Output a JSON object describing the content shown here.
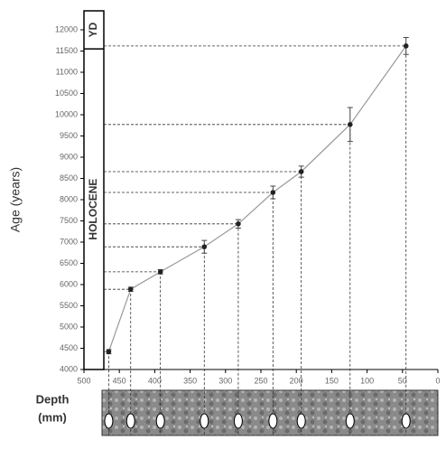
{
  "chart_data": {
    "type": "scatter",
    "ylabel": "Age (years)",
    "xlabel": [
      "Depth",
      "(mm)"
    ],
    "regions": [
      "YD",
      "HOLOCENE"
    ],
    "boundary": 11550,
    "xlim": [
      500,
      0
    ],
    "xticks": [
      500,
      450,
      400,
      350,
      300,
      250,
      200,
      150,
      100,
      50,
      0
    ],
    "ylim": [
      4000,
      12000
    ],
    "yticks": [
      4000,
      4500,
      5000,
      5500,
      6000,
      6500,
      7000,
      7500,
      8000,
      8500,
      9000,
      9500,
      10000,
      10500,
      11000,
      11500,
      12000
    ],
    "x": [
      465,
      434,
      392,
      330,
      282,
      233,
      193,
      124,
      45
    ],
    "series": [
      {
        "color": "#222222",
        "line_color": "#999999",
        "values": [
          4420,
          5890,
          6300,
          6890,
          7430,
          8170,
          8660,
          9770,
          11620
        ],
        "errors": [
          50,
          50,
          50,
          150,
          100,
          150,
          130,
          400,
          200
        ]
      }
    ]
  }
}
